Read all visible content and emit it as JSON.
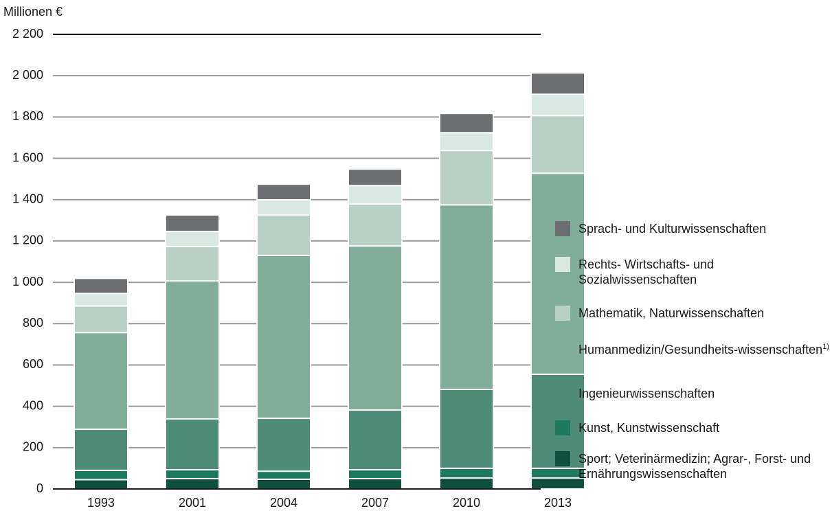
{
  "chart_data": {
    "type": "stacked_bar",
    "y_label": "Millionen €",
    "categories": [
      "1993",
      "2001",
      "2004",
      "2007",
      "2010",
      "2013"
    ],
    "series": [
      {
        "name": "Sport; Veterinärmedizin; Agrar-, Forst- und Ernährungswissenschaften",
        "color": "#0e4f3d",
        "values": [
          45,
          50,
          47,
          50,
          53,
          53
        ]
      },
      {
        "name": "Kunst, Kunstwissenschaft",
        "color": "#1e7a5f",
        "values": [
          45,
          43,
          39,
          43,
          47,
          47
        ]
      },
      {
        "name": "Ingenieurwissenschaften",
        "color": "#4f8c78",
        "values": [
          199,
          246,
          256,
          289,
          382,
          455
        ]
      },
      {
        "name": "Humanmedizin/Gesundheits-wissenschaften",
        "name_note": "1)",
        "color": "#80ae9b",
        "values": [
          468,
          668,
          788,
          794,
          893,
          973
        ]
      },
      {
        "name": "Mathematik, Naturwissenschaften",
        "color": "#b9d0c6",
        "values": [
          129,
          166,
          196,
          203,
          263,
          279
        ]
      },
      {
        "name": "Rechts- Wirtschafts- und Sozialwissenschaften",
        "color": "#d9e8e2",
        "values": [
          60,
          73,
          73,
          89,
          86,
          103
        ]
      },
      {
        "name": "Sprach- und Kulturwissenschaften",
        "color": "#6d6e71",
        "values": [
          73,
          80,
          76,
          80,
          93,
          103
        ]
      }
    ],
    "ylim": [
      0,
      2200
    ],
    "yticks": [
      0,
      200,
      400,
      600,
      800,
      {
        "value": 1000,
        "label": "1 000"
      },
      {
        "value": 1200,
        "label": "1 200"
      },
      {
        "value": 1400,
        "label": "1 400"
      },
      {
        "value": 1600,
        "label": "1 600"
      },
      {
        "value": 1800,
        "label": "1 800"
      },
      {
        "value": 2000,
        "label": "2 000"
      },
      {
        "value": 2200,
        "label": "2 200"
      }
    ],
    "grid": true
  }
}
